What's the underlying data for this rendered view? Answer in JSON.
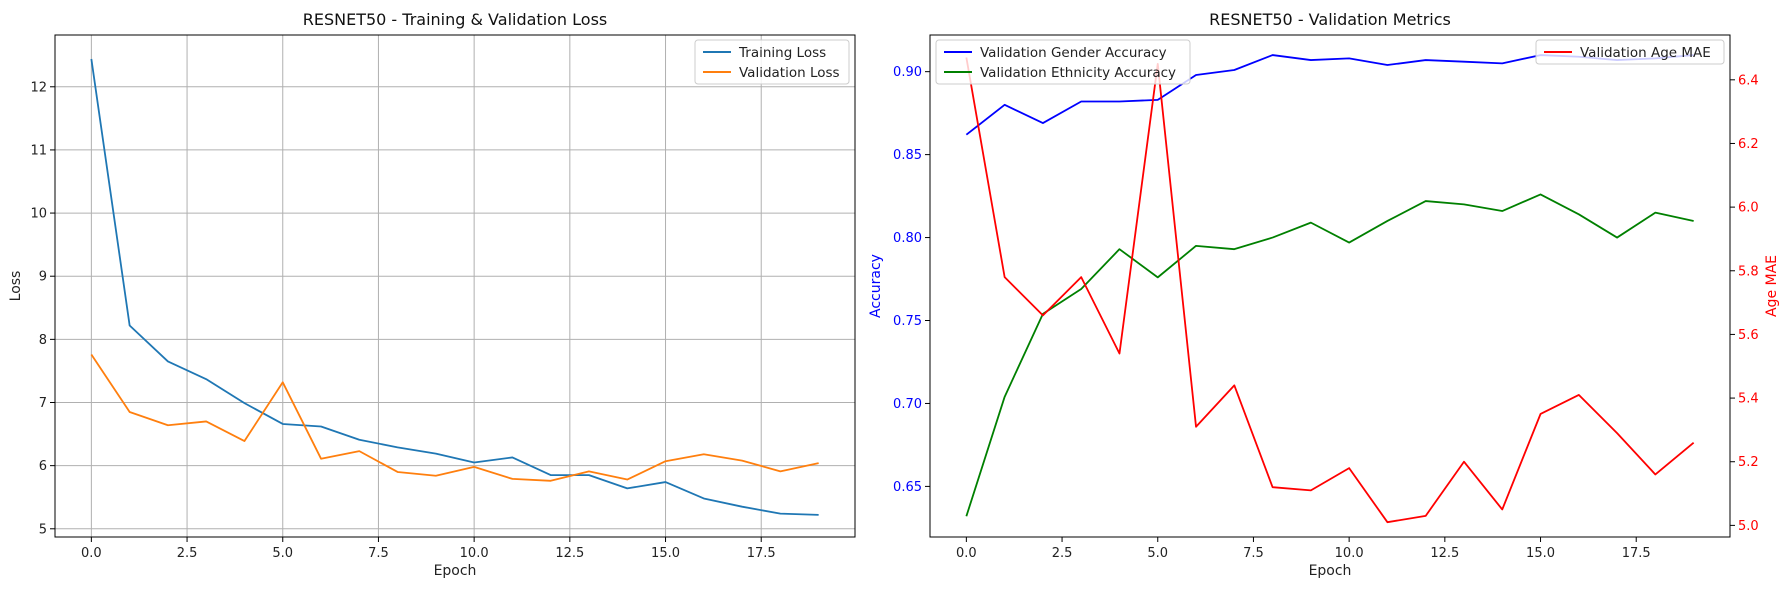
{
  "chart_data": [
    {
      "type": "line",
      "title": "RESNET50 - Training & Validation Loss",
      "xlabel": "Epoch",
      "ylabel": "Loss",
      "xlim": [
        -0.95,
        19.95
      ],
      "ylim": [
        4.87,
        12.82
      ],
      "xticks": [
        0.0,
        2.5,
        5.0,
        7.5,
        10.0,
        12.5,
        15.0,
        17.5
      ],
      "xtick_labels": [
        "0.0",
        "2.5",
        "5.0",
        "7.5",
        "10.0",
        "12.5",
        "15.0",
        "17.5"
      ],
      "yticks": [
        5,
        6,
        7,
        8,
        9,
        10,
        11,
        12
      ],
      "ytick_labels": [
        "5",
        "6",
        "7",
        "8",
        "9",
        "10",
        "11",
        "12"
      ],
      "grid": true,
      "legend_position": "upper right",
      "x": [
        0,
        1,
        2,
        3,
        4,
        5,
        6,
        7,
        8,
        9,
        10,
        11,
        12,
        13,
        14,
        15,
        16,
        17,
        18,
        19
      ],
      "series": [
        {
          "name": "Training Loss",
          "color": "#1f77b4",
          "values": [
            12.44,
            8.22,
            7.65,
            7.37,
            6.99,
            6.66,
            6.62,
            6.41,
            6.29,
            6.19,
            6.05,
            6.13,
            5.85,
            5.85,
            5.64,
            5.74,
            5.48,
            5.35,
            5.24,
            5.22
          ]
        },
        {
          "name": "Validation Loss",
          "color": "#ff7f0e",
          "values": [
            7.76,
            6.85,
            6.64,
            6.7,
            6.39,
            7.32,
            6.11,
            6.23,
            5.9,
            5.84,
            5.98,
            5.79,
            5.76,
            5.91,
            5.78,
            6.07,
            6.18,
            6.08,
            5.91,
            6.04
          ]
        }
      ]
    },
    {
      "type": "line",
      "title": "RESNET50 - Validation Metrics",
      "xlabel": "Epoch",
      "ylabel": "Accuracy",
      "ylabel_right": "Age MAE",
      "xlim": [
        -0.95,
        19.95
      ],
      "ylim": [
        0.6195,
        0.9221
      ],
      "ylim_right": [
        4.9635,
        6.5408
      ],
      "xticks": [
        0.0,
        2.5,
        5.0,
        7.5,
        10.0,
        12.5,
        15.0,
        17.5
      ],
      "xtick_labels": [
        "0.0",
        "2.5",
        "5.0",
        "7.5",
        "10.0",
        "12.5",
        "15.0",
        "17.5"
      ],
      "yticks": [
        0.65,
        0.7,
        0.75,
        0.8,
        0.85,
        0.9
      ],
      "ytick_labels": [
        "0.65",
        "0.70",
        "0.75",
        "0.80",
        "0.85",
        "0.90"
      ],
      "yticks_right": [
        5.0,
        5.2,
        5.4,
        5.6,
        5.8,
        6.0,
        6.2,
        6.4
      ],
      "ytick_labels_right": [
        "5.0",
        "5.2",
        "5.4",
        "5.6",
        "5.8",
        "6.0",
        "6.2",
        "6.4"
      ],
      "left_axis_color": "#0000ff",
      "right_axis_color": "#ff0000",
      "grid": false,
      "legend_left_position": "upper left",
      "legend_right_position": "upper right",
      "x": [
        0,
        1,
        2,
        3,
        4,
        5,
        6,
        7,
        8,
        9,
        10,
        11,
        12,
        13,
        14,
        15,
        16,
        17,
        18,
        19
      ],
      "series": [
        {
          "name": "Validation Gender Accuracy",
          "color": "#0000ff",
          "axis": "left",
          "values": [
            0.862,
            0.88,
            0.869,
            0.882,
            0.882,
            0.883,
            0.898,
            0.901,
            0.91,
            0.907,
            0.908,
            0.904,
            0.907,
            0.906,
            0.905,
            0.91,
            0.909,
            0.907,
            0.908,
            0.91
          ]
        },
        {
          "name": "Validation Ethnicity Accuracy",
          "color": "#008000",
          "axis": "left",
          "values": [
            0.632,
            0.704,
            0.754,
            0.769,
            0.793,
            0.776,
            0.795,
            0.793,
            0.8,
            0.809,
            0.797,
            0.81,
            0.822,
            0.82,
            0.816,
            0.826,
            0.814,
            0.8,
            0.815,
            0.81
          ]
        },
        {
          "name": "Validation Age MAE",
          "color": "#ff0000",
          "axis": "right",
          "values": [
            6.47,
            5.78,
            5.66,
            5.78,
            5.54,
            6.45,
            5.31,
            5.44,
            5.12,
            5.11,
            5.18,
            5.01,
            5.03,
            5.2,
            5.05,
            5.35,
            5.41,
            5.29,
            5.16,
            5.26
          ]
        }
      ]
    }
  ]
}
